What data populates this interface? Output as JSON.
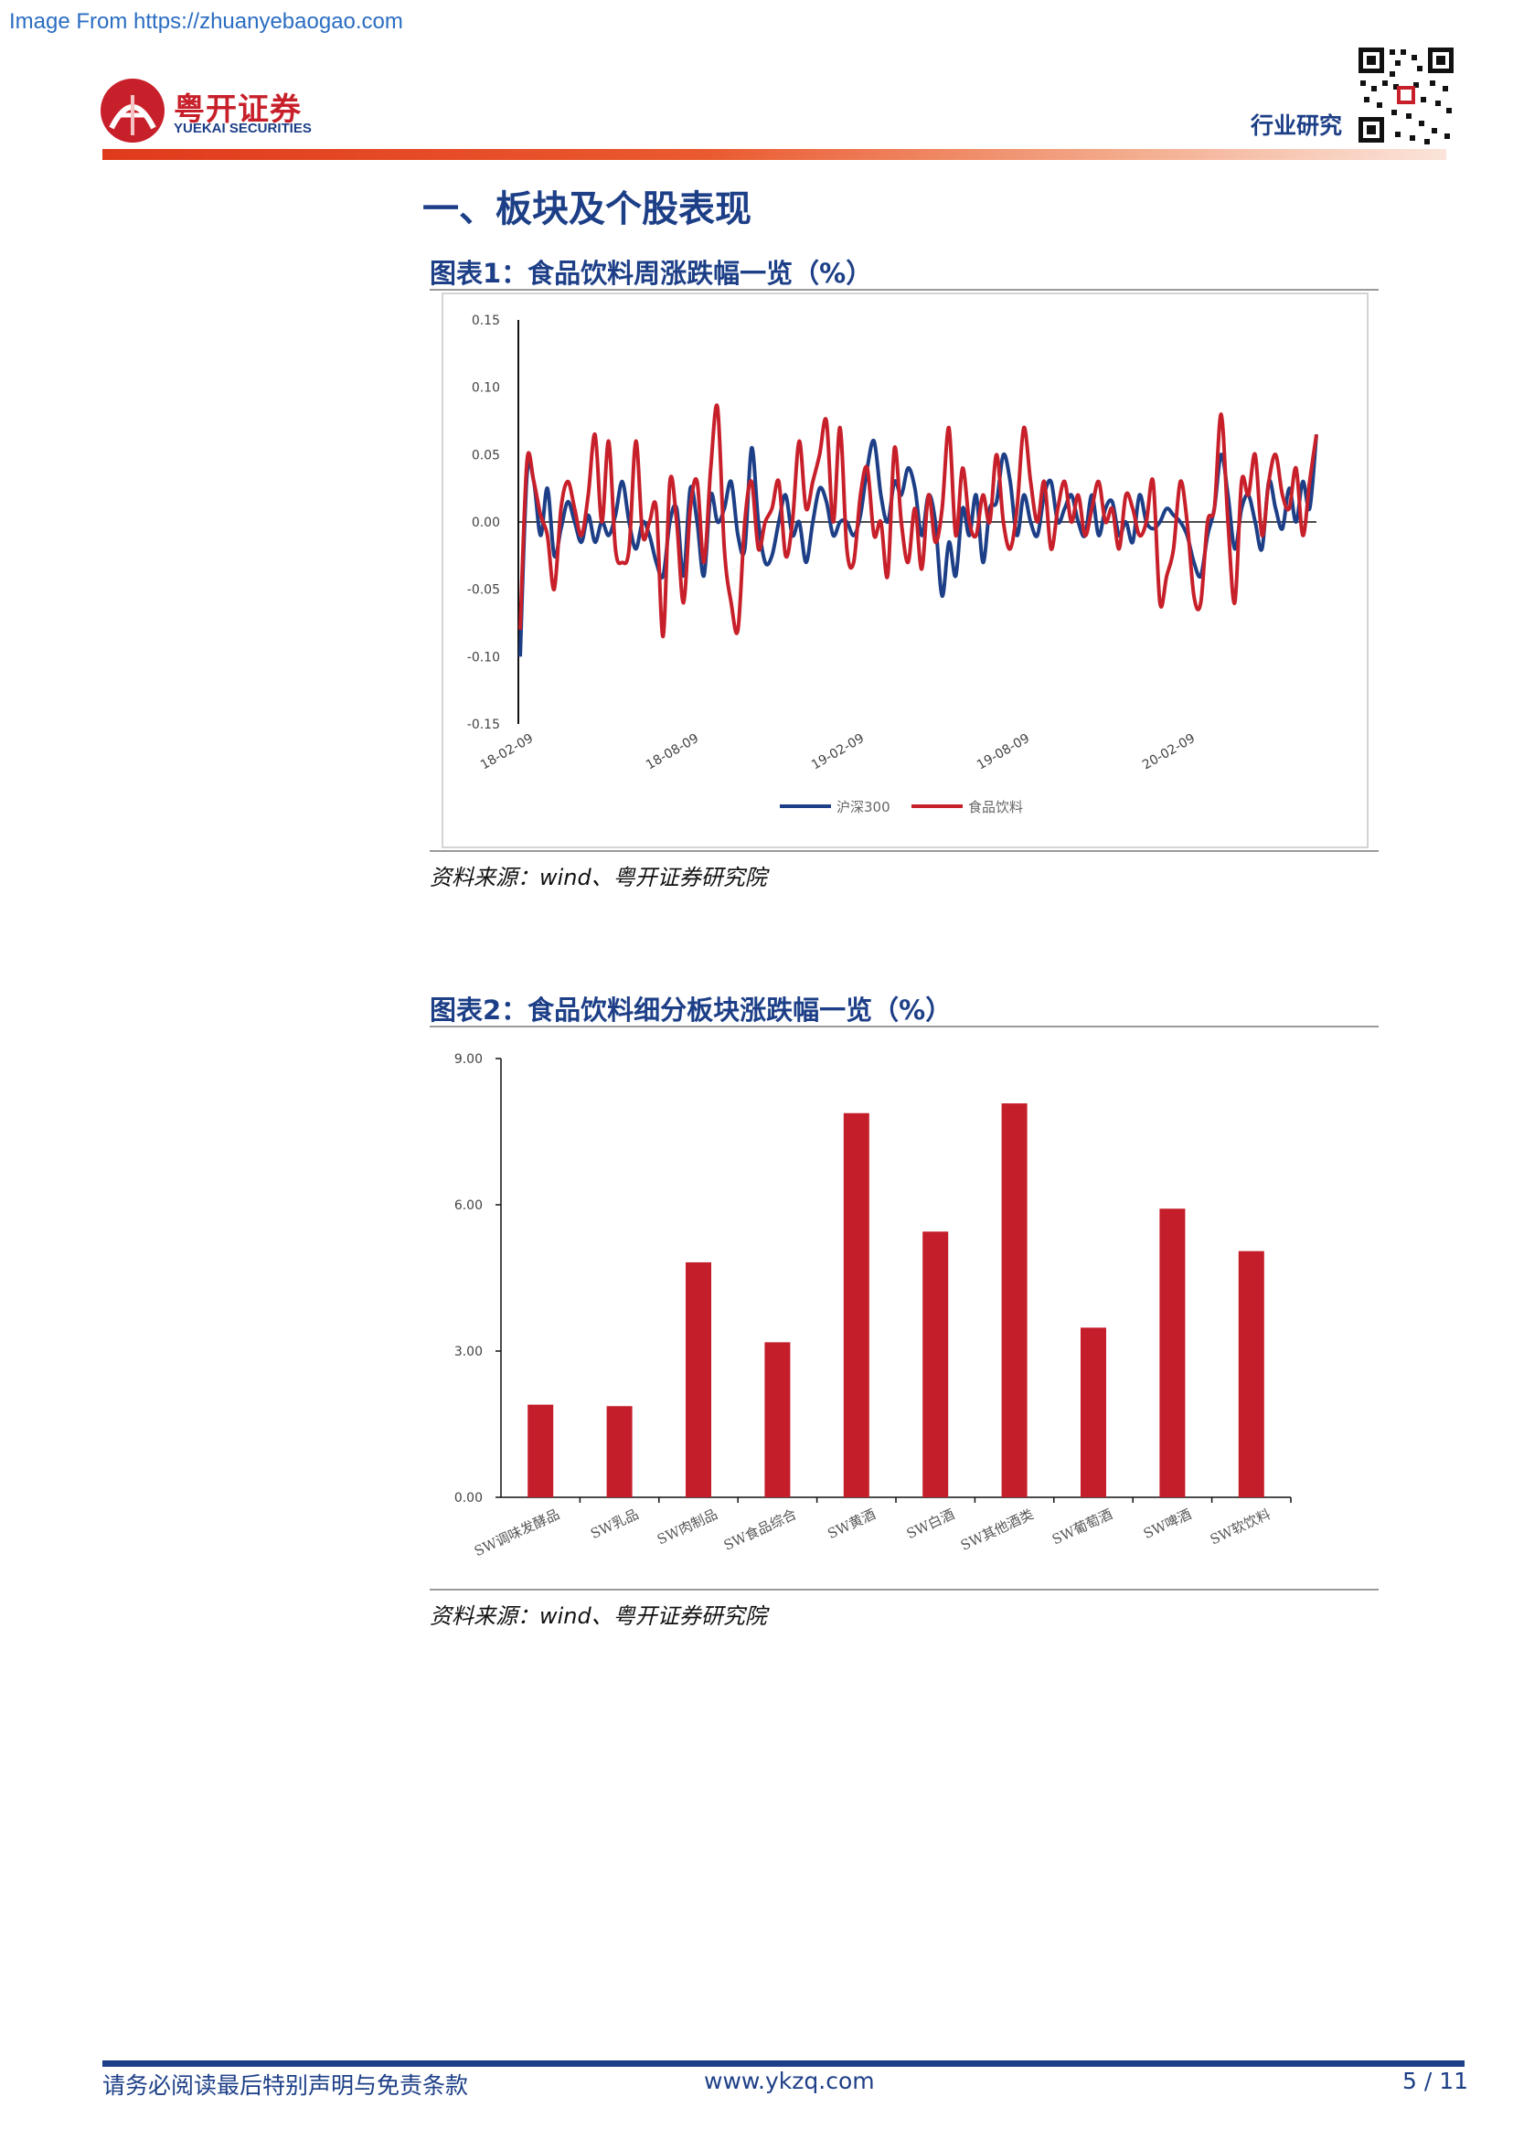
{
  "watermark": "Image From https://zhuanyebaogao.com",
  "header": {
    "logo_cn": "粤开证券",
    "logo_en": "YUEKAI SECURITIES",
    "label": "行业研究"
  },
  "section_title": "一、板块及个股表现",
  "colors": {
    "navy": "#1d3f87",
    "red": "#c8202a",
    "bar": "#c41e2a"
  },
  "figures": [
    {
      "title": "图表1：食品饮料周涨跌幅一览（%）",
      "source": "资料来源：wind、粤开证券研究院"
    },
    {
      "title": "图表2：食品饮料细分板块涨跌幅一览（%）",
      "source": "资料来源：wind、粤开证券研究院"
    }
  ],
  "chart_data": [
    {
      "type": "line",
      "ylim": [
        -0.15,
        0.15
      ],
      "yticks": [
        "0.15",
        "0.10",
        "0.05",
        "0.00",
        "-0.05",
        "-0.10",
        "-0.15"
      ],
      "xticks": [
        "18-02-09",
        "18-08-09",
        "19-02-09",
        "19-08-09",
        "20-02-09"
      ],
      "legend_placement": "bottom",
      "series": [
        {
          "name": "沪深300",
          "color": "#1d3f87",
          "values": [
            -0.1,
            0.035,
            0.03,
            -0.01,
            0.025,
            -0.025,
            -0.005,
            0.015,
            0.0,
            -0.015,
            0.005,
            -0.015,
            0.0,
            -0.01,
            0.005,
            0.03,
            0.0,
            -0.02,
            0.0,
            -0.01,
            -0.03,
            -0.04,
            0.0,
            0.01,
            -0.04,
            0.025,
            0.0,
            -0.04,
            0.02,
            0.0,
            0.01,
            0.03,
            -0.01,
            -0.02,
            0.055,
            0.0,
            -0.03,
            -0.025,
            0.0,
            0.02,
            -0.01,
            0.0,
            -0.03,
            0.0,
            0.025,
            0.015,
            -0.01,
            0.0,
            0.0,
            -0.01,
            0.005,
            0.04,
            0.06,
            0.02,
            0.0,
            0.03,
            0.02,
            0.04,
            0.025,
            -0.01,
            0.02,
            0.0,
            -0.055,
            -0.015,
            -0.04,
            0.01,
            -0.01,
            0.02,
            -0.03,
            0.01,
            0.015,
            0.05,
            0.03,
            -0.01,
            0.02,
            0.0,
            -0.01,
            0.02,
            0.03,
            0.0,
            0.01,
            0.02,
            0.0,
            -0.01,
            0.02,
            -0.01,
            0.01,
            0.015,
            -0.01,
            0.0,
            -0.015,
            0.02,
            0.0,
            -0.005,
            0.0,
            0.01,
            0.005,
            0.0,
            -0.01,
            -0.03,
            -0.04,
            -0.01,
            0.01,
            0.05,
            0.02,
            -0.02,
            0.01,
            0.02,
            0.0,
            -0.02,
            0.03,
            0.01,
            -0.005,
            0.025,
            0.0,
            0.03,
            0.01,
            0.065
          ]
        },
        {
          "name": "食品饮料",
          "color": "#c8202a",
          "values": [
            -0.08,
            0.045,
            0.03,
            0.005,
            -0.01,
            -0.05,
            0.01,
            0.03,
            0.01,
            -0.01,
            0.02,
            0.065,
            0.0,
            0.06,
            -0.02,
            -0.03,
            -0.02,
            0.06,
            -0.01,
            0.0,
            0.01,
            -0.085,
            0.03,
            0.0,
            -0.06,
            0.01,
            0.03,
            -0.03,
            0.04,
            0.085,
            -0.02,
            -0.06,
            -0.08,
            0.0,
            0.03,
            -0.02,
            0.0,
            0.01,
            0.03,
            -0.025,
            0.0,
            0.06,
            0.01,
            0.03,
            0.05,
            0.075,
            0.0,
            0.07,
            -0.02,
            -0.03,
            0.02,
            0.04,
            -0.01,
            0.0,
            -0.04,
            0.055,
            0.0,
            -0.03,
            0.01,
            -0.035,
            0.02,
            -0.015,
            0.01,
            0.07,
            -0.01,
            0.04,
            0.0,
            -0.01,
            0.02,
            0.0,
            0.05,
            0.0,
            -0.02,
            0.01,
            0.07,
            0.03,
            0.0,
            0.03,
            -0.02,
            0.01,
            0.03,
            0.0,
            0.02,
            -0.01,
            0.01,
            0.03,
            0.0,
            0.01,
            -0.02,
            0.02,
            0.01,
            -0.01,
            0.0,
            0.03,
            -0.06,
            -0.04,
            -0.02,
            0.03,
            0.0,
            -0.055,
            -0.06,
            0.0,
            0.01,
            0.08,
            0.0,
            -0.06,
            0.03,
            0.02,
            0.05,
            -0.01,
            0.03,
            0.05,
            0.02,
            0.01,
            0.04,
            -0.01,
            0.03,
            0.065
          ]
        }
      ]
    },
    {
      "type": "bar",
      "ylim": [
        0,
        9
      ],
      "yticks": [
        "9.00",
        "6.00",
        "3.00",
        "0.00"
      ],
      "categories": [
        "SW调味发酵品",
        "SW乳品",
        "SW肉制品",
        "SW食品综合",
        "SW黄酒",
        "SW白酒",
        "SW其他酒类",
        "SW葡萄酒",
        "SW啤酒",
        "SW软饮料"
      ],
      "values": [
        1.9,
        1.87,
        4.82,
        3.18,
        7.88,
        5.45,
        8.08,
        3.48,
        5.92,
        5.05
      ]
    }
  ],
  "footer": {
    "disclaimer": "请务必阅读最后特别声明与免责条款",
    "website": "www.ykzq.com",
    "page": "5 / 11"
  }
}
